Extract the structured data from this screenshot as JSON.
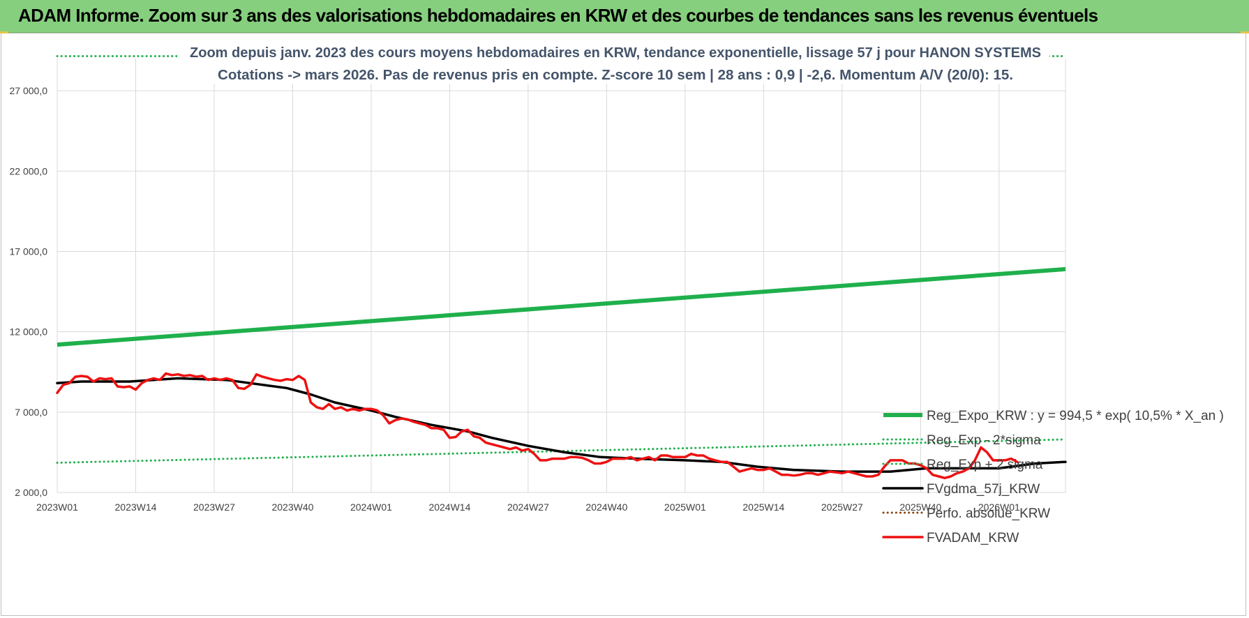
{
  "header": {
    "banner_title": "ADAM Informe. Zoom sur 3 ans des valorisations hebdomadaires en KRW et des courbes de tendances sans les revenus éventuels"
  },
  "colors": {
    "banner": "#86cf7e",
    "regression": "#1fb04c",
    "sigma_bands": "#1fb04c",
    "fvgdma": "#000000",
    "perfo": "#8b4513",
    "fvadam": "#ee1111",
    "grid": "#d9d9d9"
  },
  "chart_data": {
    "type": "line",
    "title_line1": "Zoom depuis janv. 2023 des cours moyens hebdomadaires en KRW, tendance exponentielle, lissage 57 j pour HANON SYSTEMS",
    "title_line2": "Cotations -> mars 2026. Pas de revenus pris en compte. Z-score 10 sem | 28 ans : 0,9 | -2,6. Momentum A/V (20/0): 15.",
    "xlabel": "",
    "ylabel": "",
    "ylim": [
      2000,
      29000
    ],
    "yticks": [
      2000,
      7000,
      12000,
      17000,
      22000,
      27000
    ],
    "ytick_labels": [
      "2 000,0",
      "7 000,0",
      "12 000,0",
      "17 000,0",
      "22 000,0",
      "27 000,0"
    ],
    "x_week_count": 168,
    "xtick_labels": [
      "2023W01",
      "2023W14",
      "2023W27",
      "2023W40",
      "2024W01",
      "2024W14",
      "2024W27",
      "2024W40",
      "2025W01",
      "2025W14",
      "2025W27",
      "2025W40",
      "2026W01"
    ],
    "xtick_week_index": [
      0,
      13,
      26,
      39,
      52,
      65,
      78,
      91,
      104,
      117,
      130,
      143,
      156
    ],
    "grid": true,
    "legend_position": "bottom-right",
    "series": [
      {
        "name": "Reg_Expo_KRW : y = 994,5 * exp( 10,5% *  X_an )",
        "style": "thick-solid",
        "color": "#1fb04c",
        "points": [
          [
            0,
            11200
          ],
          [
            167,
            15900
          ]
        ]
      },
      {
        "name": "Reg_Exp - 2*sigma",
        "style": "dotted",
        "color": "#1fb04c",
        "points": [
          [
            0,
            3850
          ],
          [
            167,
            5300
          ]
        ]
      },
      {
        "name": "Reg_Exp + 2 sigma",
        "style": "dotted",
        "color": "#1fb04c",
        "points": [
          [
            0,
            29150
          ],
          [
            167,
            29150
          ]
        ]
      },
      {
        "name": "FVgdma_57j_KRW",
        "style": "solid",
        "color": "#000000",
        "points": [
          [
            0,
            8800
          ],
          [
            4,
            8900
          ],
          [
            12,
            8900
          ],
          [
            20,
            9100
          ],
          [
            28,
            9000
          ],
          [
            34,
            8700
          ],
          [
            38,
            8500
          ],
          [
            42,
            8100
          ],
          [
            46,
            7600
          ],
          [
            52,
            7100
          ],
          [
            56,
            6700
          ],
          [
            62,
            6200
          ],
          [
            68,
            5800
          ],
          [
            72,
            5400
          ],
          [
            78,
            4900
          ],
          [
            84,
            4500
          ],
          [
            90,
            4200
          ],
          [
            96,
            4100
          ],
          [
            104,
            4000
          ],
          [
            110,
            3900
          ],
          [
            116,
            3600
          ],
          [
            122,
            3400
          ],
          [
            130,
            3300
          ],
          [
            138,
            3300
          ],
          [
            144,
            3500
          ],
          [
            150,
            3500
          ],
          [
            156,
            3500
          ],
          [
            162,
            3800
          ],
          [
            167,
            3900
          ]
        ]
      },
      {
        "name": "Perfo. absolue_KRW",
        "style": "dotted",
        "color": "#8b4513",
        "points": []
      },
      {
        "name": "FVADAM_KRW",
        "style": "solid",
        "color": "#ee1111",
        "points": [
          [
            0,
            8200
          ],
          [
            1,
            8700
          ],
          [
            2,
            8800
          ],
          [
            3,
            9200
          ],
          [
            4,
            9250
          ],
          [
            5,
            9200
          ],
          [
            6,
            8900
          ],
          [
            7,
            9100
          ],
          [
            8,
            9050
          ],
          [
            9,
            9100
          ],
          [
            10,
            8600
          ],
          [
            11,
            8550
          ],
          [
            12,
            8600
          ],
          [
            13,
            8400
          ],
          [
            14,
            8800
          ],
          [
            15,
            9000
          ],
          [
            16,
            9100
          ],
          [
            17,
            9000
          ],
          [
            18,
            9400
          ],
          [
            19,
            9300
          ],
          [
            20,
            9350
          ],
          [
            21,
            9250
          ],
          [
            22,
            9300
          ],
          [
            23,
            9200
          ],
          [
            24,
            9250
          ],
          [
            25,
            9000
          ],
          [
            26,
            9100
          ],
          [
            27,
            9000
          ],
          [
            28,
            9100
          ],
          [
            29,
            9000
          ],
          [
            30,
            8500
          ],
          [
            31,
            8450
          ],
          [
            32,
            8700
          ],
          [
            33,
            9350
          ],
          [
            34,
            9200
          ],
          [
            35,
            9100
          ],
          [
            36,
            9000
          ],
          [
            37,
            8950
          ],
          [
            38,
            9050
          ],
          [
            39,
            9000
          ],
          [
            40,
            9250
          ],
          [
            41,
            9000
          ],
          [
            42,
            7600
          ],
          [
            43,
            7300
          ],
          [
            44,
            7200
          ],
          [
            45,
            7500
          ],
          [
            46,
            7200
          ],
          [
            47,
            7300
          ],
          [
            48,
            7100
          ],
          [
            49,
            7200
          ],
          [
            50,
            7100
          ],
          [
            51,
            7200
          ],
          [
            52,
            7200
          ],
          [
            53,
            7100
          ],
          [
            54,
            6800
          ],
          [
            55,
            6300
          ],
          [
            56,
            6500
          ],
          [
            57,
            6600
          ],
          [
            58,
            6550
          ],
          [
            59,
            6400
          ],
          [
            60,
            6300
          ],
          [
            61,
            6200
          ],
          [
            62,
            6000
          ],
          [
            63,
            6000
          ],
          [
            64,
            5900
          ],
          [
            65,
            5400
          ],
          [
            66,
            5450
          ],
          [
            67,
            5800
          ],
          [
            68,
            5900
          ],
          [
            69,
            5500
          ],
          [
            70,
            5400
          ],
          [
            71,
            5100
          ],
          [
            72,
            5000
          ],
          [
            73,
            4900
          ],
          [
            74,
            4800
          ],
          [
            75,
            4700
          ],
          [
            76,
            4800
          ],
          [
            77,
            4600
          ],
          [
            78,
            4700
          ],
          [
            79,
            4400
          ],
          [
            80,
            4000
          ],
          [
            81,
            4000
          ],
          [
            82,
            4100
          ],
          [
            83,
            4100
          ],
          [
            84,
            4100
          ],
          [
            85,
            4200
          ],
          [
            86,
            4200
          ],
          [
            87,
            4150
          ],
          [
            88,
            4000
          ],
          [
            89,
            3800
          ],
          [
            90,
            3800
          ],
          [
            91,
            3900
          ],
          [
            92,
            4100
          ],
          [
            93,
            4100
          ],
          [
            94,
            4100
          ],
          [
            95,
            4200
          ],
          [
            96,
            4000
          ],
          [
            97,
            4100
          ],
          [
            98,
            4200
          ],
          [
            99,
            4000
          ],
          [
            100,
            4300
          ],
          [
            101,
            4300
          ],
          [
            102,
            4200
          ],
          [
            103,
            4200
          ],
          [
            104,
            4200
          ],
          [
            105,
            4400
          ],
          [
            106,
            4300
          ],
          [
            107,
            4300
          ],
          [
            108,
            4100
          ],
          [
            109,
            4000
          ],
          [
            110,
            3900
          ],
          [
            111,
            3900
          ],
          [
            112,
            3600
          ],
          [
            113,
            3300
          ],
          [
            114,
            3400
          ],
          [
            115,
            3500
          ],
          [
            116,
            3400
          ],
          [
            117,
            3400
          ],
          [
            118,
            3500
          ],
          [
            119,
            3300
          ],
          [
            120,
            3100
          ],
          [
            121,
            3100
          ],
          [
            122,
            3050
          ],
          [
            123,
            3100
          ],
          [
            124,
            3200
          ],
          [
            125,
            3200
          ],
          [
            126,
            3100
          ],
          [
            127,
            3200
          ],
          [
            128,
            3300
          ],
          [
            129,
            3250
          ],
          [
            130,
            3200
          ],
          [
            131,
            3300
          ],
          [
            132,
            3200
          ],
          [
            133,
            3100
          ],
          [
            134,
            3000
          ],
          [
            135,
            3000
          ],
          [
            136,
            3100
          ],
          [
            137,
            3600
          ],
          [
            138,
            4000
          ],
          [
            139,
            4000
          ],
          [
            140,
            4000
          ],
          [
            141,
            3800
          ],
          [
            142,
            3800
          ],
          [
            143,
            3700
          ],
          [
            144,
            3500
          ],
          [
            145,
            3100
          ],
          [
            146,
            3000
          ],
          [
            147,
            2900
          ],
          [
            148,
            3000
          ],
          [
            149,
            3200
          ],
          [
            150,
            3300
          ],
          [
            151,
            3500
          ],
          [
            152,
            4000
          ],
          [
            153,
            4800
          ],
          [
            154,
            4500
          ],
          [
            155,
            4000
          ],
          [
            156,
            4000
          ],
          [
            157,
            4000
          ],
          [
            158,
            4100
          ],
          [
            159,
            3900
          ]
        ]
      }
    ]
  }
}
